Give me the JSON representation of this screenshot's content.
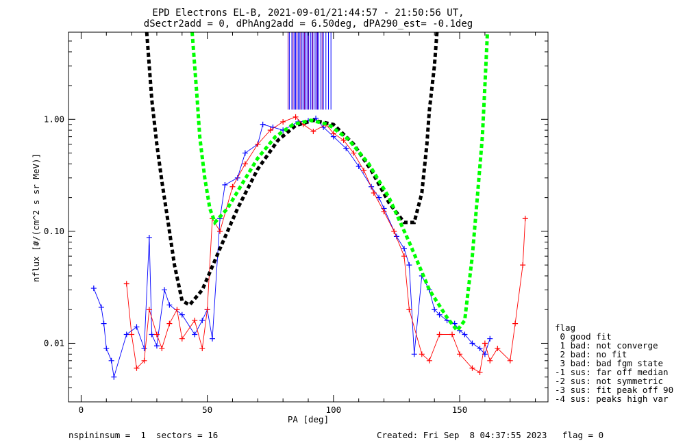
{
  "chart_data": {
    "type": "scatter",
    "title_line1": "EPD Electrons EL-B, 2021-09-01/21:44:57 - 21:50:56 UT,",
    "title_line2": "dSectr2add = 0, dPhAng2add = 6.50deg, dPA290_est=  -0.1deg",
    "xlabel": "PA [deg]",
    "ylabel": "nflux [#/(cm^2 s sr MeV)]",
    "xlim": [
      -5,
      185
    ],
    "ylim": [
      0.003,
      6.0
    ],
    "y_scale": "log",
    "x_ticks": [
      0,
      50,
      100,
      150
    ],
    "y_ticks": [
      0.01,
      0.1,
      1.0
    ],
    "x_tick_labels": [
      "0",
      "50",
      "100",
      "150"
    ],
    "y_tick_labels": [
      "0.01",
      "0.10",
      "1.00"
    ],
    "series": [
      {
        "color": "#0000ff",
        "marker": "+",
        "points": [
          [
            5,
            0.031
          ],
          [
            8,
            0.021
          ],
          [
            9,
            0.015
          ],
          [
            10,
            0.009
          ],
          [
            12,
            0.007
          ],
          [
            13,
            0.005
          ],
          [
            18,
            0.012
          ],
          [
            22,
            0.014
          ],
          [
            25,
            0.009
          ],
          [
            27,
            0.088
          ],
          [
            28,
            0.012
          ],
          [
            30,
            0.0095
          ],
          [
            33,
            0.03
          ],
          [
            35,
            0.022
          ],
          [
            40,
            0.018
          ],
          [
            45,
            0.012
          ],
          [
            48,
            0.016
          ],
          [
            50,
            0.02
          ],
          [
            52,
            0.011
          ],
          [
            55,
            0.13
          ],
          [
            57,
            0.26
          ],
          [
            62,
            0.3
          ],
          [
            65,
            0.5
          ],
          [
            70,
            0.6
          ],
          [
            72,
            0.9
          ],
          [
            76,
            0.85
          ],
          [
            80,
            0.8
          ],
          [
            86,
            0.95
          ],
          [
            90,
            0.97
          ],
          [
            93,
            1.02
          ],
          [
            96,
            0.85
          ],
          [
            100,
            0.7
          ],
          [
            105,
            0.55
          ],
          [
            110,
            0.38
          ],
          [
            115,
            0.25
          ],
          [
            118,
            0.2
          ],
          [
            120,
            0.16
          ],
          [
            125,
            0.09
          ],
          [
            128,
            0.07
          ],
          [
            130,
            0.05
          ],
          [
            132,
            0.008
          ],
          [
            135,
            0.04
          ],
          [
            138,
            0.03
          ],
          [
            140,
            0.02
          ],
          [
            142,
            0.018
          ],
          [
            145,
            0.016
          ],
          [
            148,
            0.015
          ],
          [
            150,
            0.013
          ],
          [
            152,
            0.012
          ],
          [
            155,
            0.01
          ],
          [
            158,
            0.009
          ],
          [
            160,
            0.008
          ],
          [
            162,
            0.011
          ]
        ]
      },
      {
        "color": "#ff0000",
        "marker": "+",
        "points": [
          [
            18,
            0.034
          ],
          [
            20,
            0.012
          ],
          [
            22,
            0.006
          ],
          [
            25,
            0.007
          ],
          [
            27,
            0.02
          ],
          [
            30,
            0.012
          ],
          [
            32,
            0.009
          ],
          [
            35,
            0.015
          ],
          [
            38,
            0.02
          ],
          [
            40,
            0.011
          ],
          [
            45,
            0.016
          ],
          [
            48,
            0.009
          ],
          [
            50,
            0.02
          ],
          [
            52,
            0.13
          ],
          [
            55,
            0.1
          ],
          [
            60,
            0.25
          ],
          [
            65,
            0.4
          ],
          [
            70,
            0.6
          ],
          [
            75,
            0.8
          ],
          [
            80,
            0.95
          ],
          [
            85,
            1.05
          ],
          [
            88,
            0.9
          ],
          [
            92,
            0.78
          ],
          [
            97,
            0.9
          ],
          [
            100,
            0.75
          ],
          [
            104,
            0.65
          ],
          [
            108,
            0.5
          ],
          [
            112,
            0.35
          ],
          [
            116,
            0.22
          ],
          [
            120,
            0.15
          ],
          [
            124,
            0.1
          ],
          [
            128,
            0.06
          ],
          [
            130,
            0.02
          ],
          [
            135,
            0.008
          ],
          [
            138,
            0.007
          ],
          [
            142,
            0.012
          ],
          [
            147,
            0.012
          ],
          [
            150,
            0.008
          ],
          [
            155,
            0.006
          ],
          [
            158,
            0.0055
          ],
          [
            160,
            0.01
          ],
          [
            162,
            0.007
          ],
          [
            165,
            0.009
          ],
          [
            170,
            0.007
          ],
          [
            172,
            0.015
          ],
          [
            175,
            0.05
          ],
          [
            176,
            0.13
          ]
        ]
      },
      {
        "color": "#000000",
        "style": "dashed",
        "points": [
          [
            26,
            6.0
          ],
          [
            27,
            3.0
          ],
          [
            28,
            1.5
          ],
          [
            30,
            0.6
          ],
          [
            32,
            0.28
          ],
          [
            35,
            0.1
          ],
          [
            37,
            0.05
          ],
          [
            40,
            0.024
          ],
          [
            43,
            0.022
          ],
          [
            48,
            0.03
          ],
          [
            55,
            0.07
          ],
          [
            62,
            0.16
          ],
          [
            70,
            0.36
          ],
          [
            78,
            0.65
          ],
          [
            85,
            0.88
          ],
          [
            92,
            0.98
          ],
          [
            100,
            0.9
          ],
          [
            108,
            0.6
          ],
          [
            115,
            0.35
          ],
          [
            122,
            0.18
          ],
          [
            128,
            0.12
          ],
          [
            132,
            0.12
          ],
          [
            135,
            0.22
          ],
          [
            137,
            0.6
          ],
          [
            138,
            1.2
          ],
          [
            140,
            3.0
          ],
          [
            141,
            6.0
          ]
        ]
      },
      {
        "color": "#00ff00",
        "style": "dashed",
        "points": [
          [
            44,
            6.0
          ],
          [
            45,
            3.0
          ],
          [
            46,
            1.5
          ],
          [
            47,
            0.7
          ],
          [
            49,
            0.3
          ],
          [
            51,
            0.16
          ],
          [
            53,
            0.12
          ],
          [
            58,
            0.16
          ],
          [
            64,
            0.27
          ],
          [
            70,
            0.45
          ],
          [
            77,
            0.7
          ],
          [
            84,
            0.9
          ],
          [
            91,
            0.98
          ],
          [
            98,
            0.9
          ],
          [
            106,
            0.66
          ],
          [
            114,
            0.4
          ],
          [
            122,
            0.2
          ],
          [
            130,
            0.08
          ],
          [
            138,
            0.03
          ],
          [
            145,
            0.017
          ],
          [
            149,
            0.013
          ],
          [
            152,
            0.016
          ],
          [
            153,
            0.025
          ],
          [
            155,
            0.06
          ],
          [
            157,
            0.2
          ],
          [
            159,
            0.7
          ],
          [
            160,
            2.0
          ],
          [
            161,
            6.0
          ]
        ]
      }
    ],
    "vertical_lines_blue": [
      82.5,
      83.5,
      84.5,
      85.0,
      86.0,
      86.5,
      87.5,
      88.0,
      88.8,
      89.5,
      90.2,
      91.0,
      91.6,
      92.3,
      93.0,
      93.7,
      94.2,
      95.0,
      96.0,
      97.0,
      98.0,
      99.0
    ],
    "vertical_lines_purple": [
      82.0,
      84.0,
      85.5,
      87.0,
      88.5,
      90.0,
      91.8,
      93.5,
      95.5
    ],
    "legend": {
      "title": "flag",
      "entries": [
        " 0 good fit",
        " 1 bad: not converge",
        " 2 bad: no fit",
        " 3 bad: bad fgm state",
        "-1 sus: far off median",
        "-2 sus: not symmetric",
        "-3 sus: fit peak off 90",
        "-4 sus: peaks high var"
      ]
    },
    "footer": {
      "left": "nspininsum =  1  sectors = 16",
      "right": "Created: Fri Sep  8 04:37:55 2023   flag = 0"
    }
  }
}
